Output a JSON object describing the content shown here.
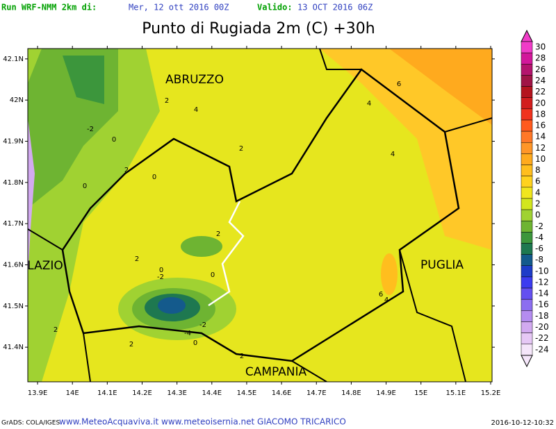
{
  "header": {
    "run_label": "Run WRF-NMM 2km di:",
    "run_date": "Mer, 12 ott 2016 00Z",
    "valid_label": "Valido:",
    "valid_date": "13 OCT 2016 06Z"
  },
  "title": "Punto di Rugiada 2m (C) +30h",
  "map": {
    "lon_range": [
      13.872,
      15.204
    ],
    "lat_range": [
      41.316,
      42.125
    ],
    "lat_ticks": [
      {
        "value": 42.1,
        "label": "42.1N"
      },
      {
        "value": 42,
        "label": "42N"
      },
      {
        "value": 41.9,
        "label": "41.9N"
      },
      {
        "value": 41.8,
        "label": "41.8N"
      },
      {
        "value": 41.7,
        "label": "41.7N"
      },
      {
        "value": 41.6,
        "label": "41.6N"
      },
      {
        "value": 41.5,
        "label": "41.5N"
      },
      {
        "value": 41.4,
        "label": "41.4N"
      }
    ],
    "lon_ticks": [
      {
        "value": 13.9,
        "label": "13.9E"
      },
      {
        "value": 14,
        "label": "14E"
      },
      {
        "value": 14.1,
        "label": "14.1E"
      },
      {
        "value": 14.2,
        "label": "14.2E"
      },
      {
        "value": 14.3,
        "label": "14.3E"
      },
      {
        "value": 14.4,
        "label": "14.4E"
      },
      {
        "value": 14.5,
        "label": "14.5E"
      },
      {
        "value": 14.6,
        "label": "14.6E"
      },
      {
        "value": 14.7,
        "label": "14.7E"
      },
      {
        "value": 14.8,
        "label": "14.8E"
      },
      {
        "value": 14.9,
        "label": "14.9E"
      },
      {
        "value": 15,
        "label": "15E"
      },
      {
        "value": 15.1,
        "label": "15.1E"
      },
      {
        "value": 15.2,
        "label": "15.2E"
      }
    ],
    "regions": [
      "ABRUZZO",
      "LAZIO",
      "PUGLIA",
      "CAMPANIA"
    ],
    "contour_labels": [
      2,
      4,
      6,
      4,
      -2,
      0,
      2,
      4,
      2,
      0,
      0,
      2,
      2,
      0,
      -2,
      0,
      6,
      4,
      2,
      -2,
      -4,
      0,
      2,
      2
    ]
  },
  "colorbar": {
    "values": [
      30,
      28,
      26,
      24,
      22,
      20,
      18,
      16,
      14,
      12,
      10,
      8,
      6,
      4,
      2,
      0,
      -2,
      -4,
      -6,
      -8,
      -10,
      -12,
      -14,
      -16,
      -18,
      -20,
      -22,
      -24
    ],
    "colors": [
      "#f03cc8",
      "#d2189b",
      "#b4146e",
      "#a01446",
      "#b4141e",
      "#d21e1e",
      "#f0321e",
      "#ff5a1e",
      "#ff7828",
      "#ff9628",
      "#ffaa1e",
      "#ffbe1e",
      "#ffd21e",
      "#f0e61e",
      "#d2e61e",
      "#a0d232",
      "#6eb432",
      "#3c963c",
      "#1e7850",
      "#145a8c",
      "#1e3cc8",
      "#3c3cf0",
      "#6450f0",
      "#8c6ef0",
      "#b48cf0",
      "#d2aaf0",
      "#e6c8f5",
      "#f5e6fa"
    ]
  },
  "footer": {
    "left": "GrADS: COLA/IGES",
    "center": "www.MeteoAcquaviva.it www.meteoisernia.net GIACOMO TRICARICO",
    "right": "2016-10-12-10:32"
  }
}
